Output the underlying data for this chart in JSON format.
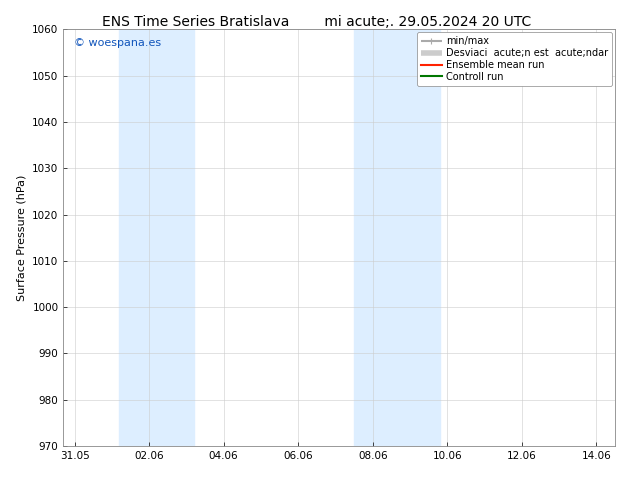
{
  "title_left": "ENS Time Series Bratislava",
  "title_right": "mi acute;. 29.05.2024 20 UTC",
  "ylabel": "Surface Pressure (hPa)",
  "ylim": [
    970,
    1060
  ],
  "yticks": [
    970,
    980,
    990,
    1000,
    1010,
    1020,
    1030,
    1040,
    1050,
    1060
  ],
  "xtick_labels": [
    "31.05",
    "02.06",
    "04.06",
    "06.06",
    "08.06",
    "10.06",
    "12.06",
    "14.06"
  ],
  "xtick_positions": [
    0,
    2,
    4,
    6,
    8,
    10,
    12,
    14
  ],
  "xlim": [
    -0.3,
    14.5
  ],
  "shade_bands": [
    {
      "xmin": 1.2,
      "xmax": 3.2
    },
    {
      "xmin": 7.5,
      "xmax": 9.8
    }
  ],
  "shade_color": "#ddeeff",
  "bg_color": "#ffffff",
  "watermark": "© woespana.es",
  "watermark_color": "#1155bb",
  "legend_labels": [
    "min/max",
    "Desviaci  acute;n est  acute;ndar",
    "Ensemble mean run",
    "Controll run"
  ],
  "legend_colors": [
    "#aaaaaa",
    "#cccccc",
    "#ff2200",
    "#007700"
  ],
  "legend_lws": [
    1.5,
    4,
    1.5,
    1.5
  ],
  "title_fontsize": 10,
  "tick_fontsize": 7.5,
  "ylabel_fontsize": 8,
  "legend_fontsize": 7,
  "watermark_fontsize": 8,
  "grid_color": "#cccccc",
  "spine_color": "#888888"
}
